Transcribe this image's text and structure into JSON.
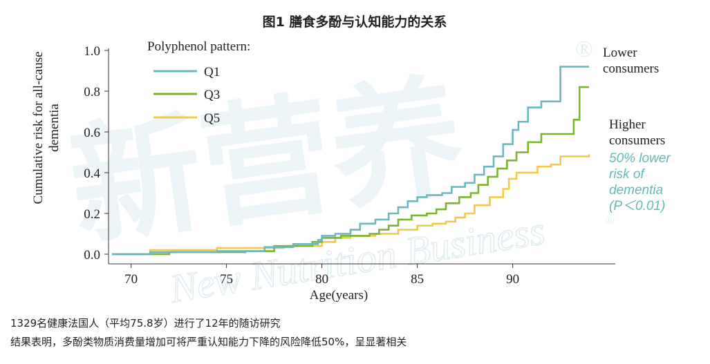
{
  "figure_title": "图1 膳食多酚与认知能力的关系",
  "watermark": {
    "cn": "新营养",
    "en": "New Nutrition Business",
    "mark": "®"
  },
  "annotations": {
    "lower": [
      "Lower",
      "consumers"
    ],
    "higher": [
      "Higher",
      "consumers"
    ],
    "risk": [
      "50% lower",
      "risk of",
      "dementia",
      "(P＜0.01)"
    ]
  },
  "footer": {
    "line1": "1329名健康法国人（平均75.8岁）进行了12年的随访研究",
    "line2": "结果表明，多酚类物质消费量增加可将严重认知能力下降的风险降低50%，呈显著相关"
  },
  "colors": {
    "Q1": "#6ab8bd",
    "Q3": "#7ab52e",
    "Q5": "#f2c84b",
    "risk_text": "#63b9b7",
    "watermark": "#e7f0f4"
  },
  "chart_data": {
    "type": "line",
    "title": "",
    "xlabel": "Age(years)",
    "ylabel": "Cumulative risk for all-cause dementia",
    "xlim": [
      69,
      94.5
    ],
    "ylim": [
      -0.02,
      1.02
    ],
    "xticks": [
      70,
      75,
      80,
      85,
      90
    ],
    "yticks": [
      0.0,
      0.2,
      0.4,
      0.6,
      0.8,
      1.0
    ],
    "ytick_labels": [
      "0.0",
      "0.2",
      "0.4",
      "0.6",
      "0.8",
      "1.0"
    ],
    "legend_title": "Polyphenol pattern:",
    "legend_position": "top-left",
    "series": [
      {
        "name": "Q1",
        "points": [
          [
            69,
            0.0
          ],
          [
            71,
            0.0
          ],
          [
            71,
            0.01
          ],
          [
            72,
            0.01
          ],
          [
            74.5,
            0.015
          ],
          [
            77,
            0.035
          ],
          [
            78.5,
            0.05
          ],
          [
            79.8,
            0.07
          ],
          [
            80,
            0.09
          ],
          [
            80.7,
            0.1
          ],
          [
            81.5,
            0.12
          ],
          [
            82,
            0.15
          ],
          [
            82.8,
            0.17
          ],
          [
            83.5,
            0.2
          ],
          [
            84,
            0.23
          ],
          [
            84.5,
            0.26
          ],
          [
            85,
            0.28
          ],
          [
            85.5,
            0.29
          ],
          [
            86.3,
            0.3
          ],
          [
            86.8,
            0.33
          ],
          [
            87.5,
            0.35
          ],
          [
            88,
            0.39
          ],
          [
            88.5,
            0.43
          ],
          [
            89,
            0.48
          ],
          [
            89.5,
            0.54
          ],
          [
            90,
            0.61
          ],
          [
            90.3,
            0.65
          ],
          [
            90.8,
            0.72
          ],
          [
            91.5,
            0.75
          ],
          [
            92.5,
            0.75
          ],
          [
            92.5,
            0.92
          ],
          [
            94,
            0.92
          ]
        ]
      },
      {
        "name": "Q3",
        "points": [
          [
            69,
            0.0
          ],
          [
            72,
            0.0
          ],
          [
            72,
            0.01
          ],
          [
            73,
            0.01
          ],
          [
            76,
            0.015
          ],
          [
            77.5,
            0.04
          ],
          [
            79.5,
            0.06
          ],
          [
            80,
            0.08
          ],
          [
            81,
            0.09
          ],
          [
            82.5,
            0.1
          ],
          [
            83,
            0.12
          ],
          [
            83.5,
            0.14
          ],
          [
            84,
            0.17
          ],
          [
            84.7,
            0.19
          ],
          [
            85.5,
            0.2
          ],
          [
            86,
            0.22
          ],
          [
            86.5,
            0.25
          ],
          [
            87.2,
            0.28
          ],
          [
            87.8,
            0.3
          ],
          [
            88.2,
            0.34
          ],
          [
            88.7,
            0.38
          ],
          [
            89.2,
            0.42
          ],
          [
            89.7,
            0.46
          ],
          [
            90.2,
            0.5
          ],
          [
            90.8,
            0.55
          ],
          [
            91.5,
            0.59
          ],
          [
            93.2,
            0.59
          ],
          [
            93.2,
            0.66
          ],
          [
            93.5,
            0.75
          ],
          [
            93.5,
            0.82
          ],
          [
            94,
            0.82
          ]
        ]
      },
      {
        "name": "Q5",
        "points": [
          [
            69,
            0.0
          ],
          [
            70.5,
            0.0
          ],
          [
            71,
            0.02
          ],
          [
            73,
            0.02
          ],
          [
            74.5,
            0.03
          ],
          [
            76,
            0.03
          ],
          [
            78,
            0.04
          ],
          [
            80,
            0.06
          ],
          [
            80.7,
            0.08
          ],
          [
            81.5,
            0.09
          ],
          [
            82.8,
            0.1
          ],
          [
            84,
            0.12
          ],
          [
            85,
            0.14
          ],
          [
            85.8,
            0.15
          ],
          [
            86.5,
            0.16
          ],
          [
            87,
            0.18
          ],
          [
            87.5,
            0.2
          ],
          [
            88,
            0.24
          ],
          [
            88.8,
            0.28
          ],
          [
            89.5,
            0.32
          ],
          [
            89.8,
            0.37
          ],
          [
            90.2,
            0.4
          ],
          [
            91,
            0.4
          ],
          [
            91.3,
            0.43
          ],
          [
            92,
            0.44
          ],
          [
            92.5,
            0.48
          ],
          [
            94,
            0.49
          ]
        ]
      }
    ]
  }
}
